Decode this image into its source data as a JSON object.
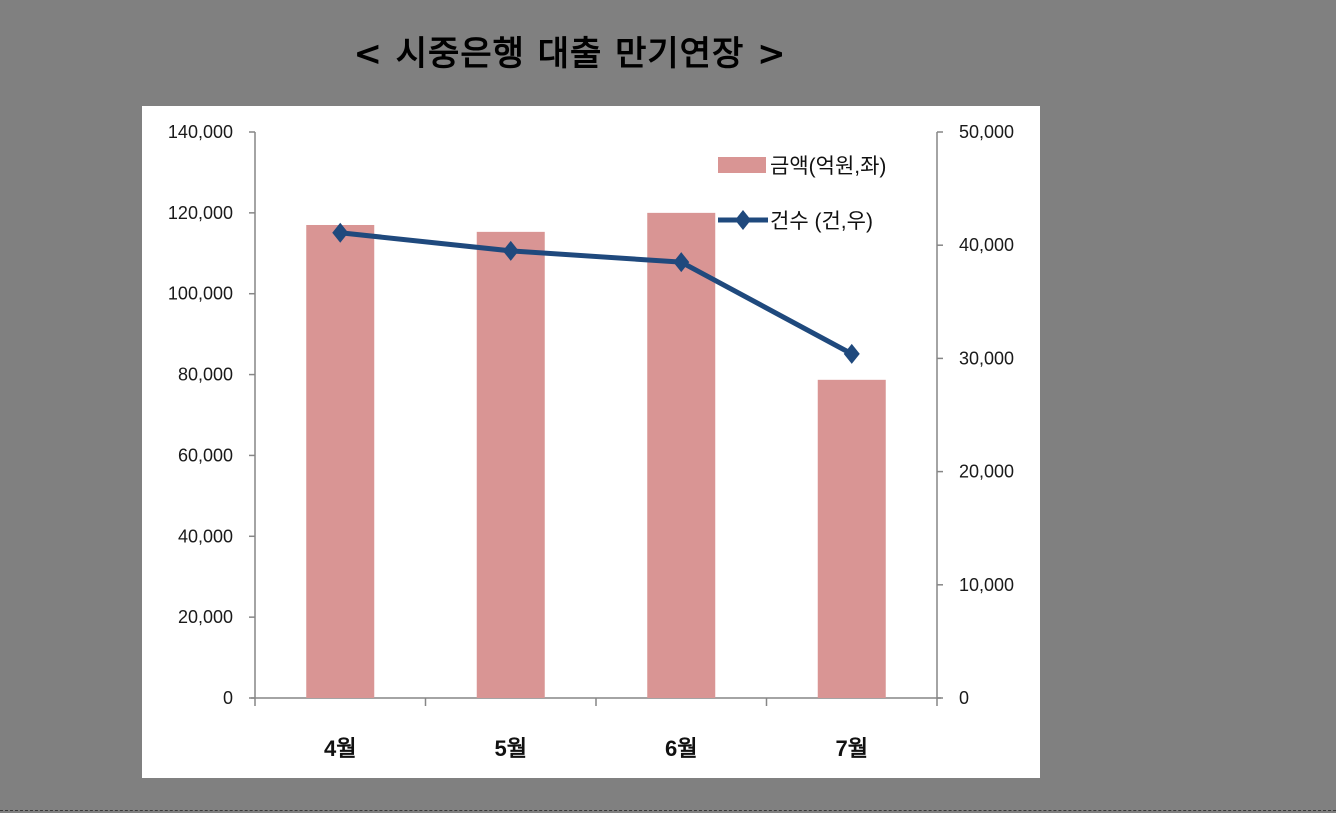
{
  "title": "< 시중은행 대출 만기연장 >",
  "legend": {
    "bar_label": "금액(억원,좌)",
    "line_label": "건수    (건,우)"
  },
  "colors": {
    "background": "#808080",
    "bar": "#d99594",
    "line": "#1f497d",
    "axis": "#868686"
  },
  "chart_data": {
    "type": "bar+line",
    "title": "< 시중은행 대출 만기연장 >",
    "categories": [
      "4월",
      "5월",
      "6월",
      "7월"
    ],
    "series": [
      {
        "name": "금액(억원,좌)",
        "type": "bar",
        "axis": "left",
        "values": [
          117000,
          115300,
          120000,
          78700
        ]
      },
      {
        "name": "건수 (건,우)",
        "type": "line",
        "axis": "right",
        "marker": "diamond",
        "values": [
          41100,
          39500,
          38500,
          30400
        ]
      }
    ],
    "left_axis": {
      "ylim": [
        0,
        140000
      ],
      "ticks": [
        "0",
        "20,000",
        "40,000",
        "60,000",
        "80,000",
        "100,000",
        "120,000",
        "140,000"
      ]
    },
    "right_axis": {
      "ylim": [
        0,
        50000
      ],
      "ticks": [
        "0",
        "10,000",
        "20,000",
        "30,000",
        "40,000",
        "50,000"
      ]
    },
    "grid": false,
    "legend_position": "top-right-inside"
  }
}
